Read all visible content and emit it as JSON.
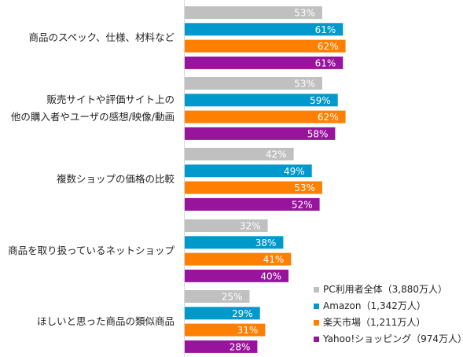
{
  "chart_data": {
    "type": "bar",
    "orientation": "horizontal",
    "categories": [
      [
        "商品のスペック、仕様、材料など"
      ],
      [
        "販売サイトや評価サイト上の",
        "他の購入者やユーザの感想/映像/動画"
      ],
      [
        "複数ショップの価格の比較"
      ],
      [
        "商品を取り扱っているネットショップ"
      ],
      [
        "ほしいと思った商品の類似商品"
      ]
    ],
    "series": [
      {
        "name": "PC利用者全体（3,880万人）",
        "color": "#c0c0c0",
        "values": [
          53,
          53,
          42,
          32,
          25
        ]
      },
      {
        "name": "Amazon（1,342万人）",
        "color": "#0099cc",
        "values": [
          61,
          59,
          49,
          38,
          29
        ]
      },
      {
        "name": "楽天市場（1,211万人）",
        "color": "#ff8000",
        "values": [
          62,
          62,
          53,
          41,
          31
        ]
      },
      {
        "name": "Yahoo!ショッピング（974万人）",
        "color": "#99149c",
        "values": [
          61,
          58,
          52,
          40,
          28
        ]
      }
    ],
    "value_suffix": "%",
    "xlim": [
      0,
      100
    ],
    "grid": false,
    "legend_position": "bottom-right"
  }
}
